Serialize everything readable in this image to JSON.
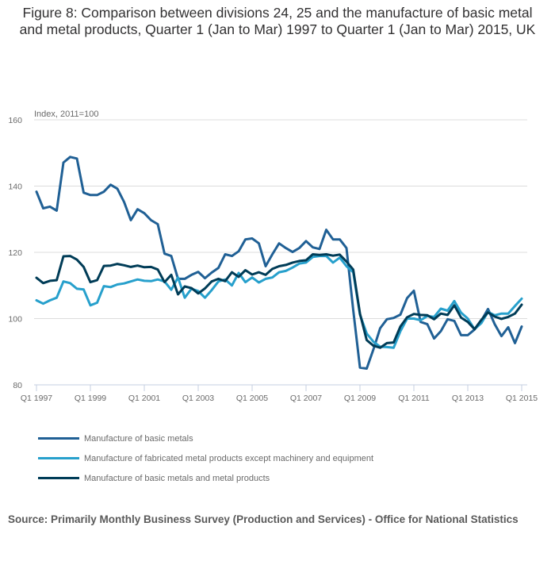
{
  "chart_data": {
    "type": "line",
    "title": "Figure 8: Comparison between divisions 24, 25 and the manufacture of basic metal and metal products, Quarter 1 (Jan to Mar) 1997 to Quarter 1 (Jan to Mar) 2015, UK",
    "ylabel": "Index, 2011=100",
    "xlabel": "",
    "ylim": [
      80,
      160
    ],
    "yticks": [
      "80",
      "100",
      "120",
      "140",
      "160"
    ],
    "xtick_labels": [
      "Q1 1997",
      "Q1 1999",
      "Q1 2001",
      "Q1 2003",
      "Q1 2005",
      "Q1 2007",
      "Q1 2009",
      "Q1 2011",
      "Q1 2013",
      "Q1 2015"
    ],
    "x_start": "Q1 1997",
    "x_end": "Q1 2015",
    "grid": true,
    "legend_position": "bottom",
    "series": [
      {
        "name": "Manufacture of basic metals",
        "color": "#206095",
        "values": [
          138.3,
          133.3,
          133.8,
          132.6,
          147.1,
          148.8,
          148.3,
          138.0,
          137.3,
          137.3,
          138.3,
          140.4,
          139.2,
          135.2,
          129.7,
          133.0,
          131.8,
          129.7,
          128.5,
          119.6,
          118.9,
          112.0,
          112.0,
          113.2,
          114.1,
          112.2,
          113.9,
          115.3,
          119.4,
          118.9,
          120.3,
          123.9,
          124.2,
          122.7,
          115.8,
          119.4,
          122.7,
          121.3,
          120.1,
          121.3,
          123.4,
          121.5,
          121.0,
          126.8,
          123.9,
          123.9,
          121.3,
          102.6,
          85.2,
          84.9,
          90.7,
          97.1,
          99.8,
          100.2,
          101.2,
          106.2,
          108.4,
          99.0,
          98.3,
          94.0,
          96.2,
          99.8,
          99.3,
          95.0,
          95.0,
          96.7,
          99.3,
          102.9,
          98.3,
          94.7,
          97.4,
          92.6,
          97.6
        ]
      },
      {
        "name": "Manufacture of fabricated metal products except machinery and equipment",
        "color": "#27a0cc",
        "values": [
          105.5,
          104.5,
          105.5,
          106.3,
          111.2,
          110.7,
          109.0,
          108.8,
          104.0,
          104.8,
          109.8,
          109.5,
          110.3,
          110.6,
          111.2,
          111.8,
          111.4,
          111.3,
          111.8,
          111.2,
          108.7,
          112.4,
          106.3,
          109.0,
          108.3,
          106.3,
          108.6,
          111.2,
          111.8,
          110.0,
          113.8,
          111.0,
          112.4,
          110.9,
          112.0,
          112.4,
          114.0,
          114.4,
          115.4,
          116.6,
          116.9,
          118.6,
          118.9,
          118.9,
          116.9,
          118.4,
          115.8,
          114.0,
          101.2,
          95.5,
          93.0,
          91.5,
          91.4,
          91.2,
          96.2,
          100.0,
          100.0,
          99.5,
          100.8,
          100.5,
          103.0,
          102.4,
          105.3,
          101.8,
          100.0,
          96.8,
          98.6,
          102.0,
          101.0,
          101.5,
          101.5,
          103.8,
          106.0
        ]
      },
      {
        "name": "Manufacture of basic metals and metal products",
        "color": "#003c57",
        "values": [
          112.3,
          110.7,
          111.4,
          111.6,
          118.8,
          118.9,
          117.8,
          115.6,
          111.0,
          111.6,
          115.9,
          116.0,
          116.5,
          116.1,
          115.6,
          116.0,
          115.5,
          115.6,
          114.8,
          111.0,
          113.2,
          107.3,
          109.7,
          109.2,
          107.6,
          109.1,
          111.2,
          112.0,
          111.3,
          114.0,
          112.6,
          114.6,
          113.3,
          114.0,
          113.2,
          115.0,
          115.8,
          116.2,
          116.9,
          117.4,
          117.6,
          119.4,
          119.2,
          119.4,
          119.0,
          119.3,
          117.2,
          114.8,
          101.5,
          93.5,
          91.8,
          91.2,
          92.6,
          92.8,
          97.6,
          100.4,
          101.4,
          101.1,
          101.0,
          99.8,
          101.5,
          101.1,
          104.0,
          100.3,
          99.0,
          96.8,
          99.6,
          101.9,
          100.6,
          99.9,
          100.5,
          101.5,
          104.2
        ]
      }
    ]
  },
  "source": "Source: Primarily Monthly Business Survey (Production and Services) - Office for National Statistics"
}
